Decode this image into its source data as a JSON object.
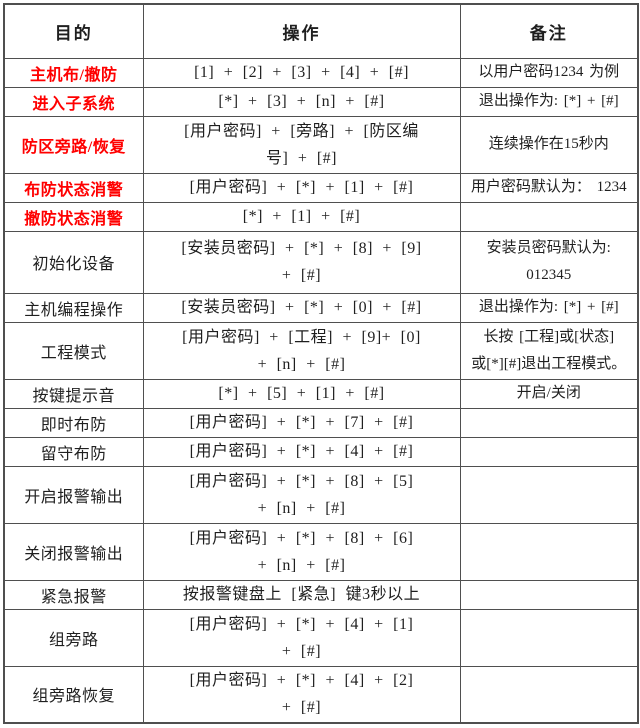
{
  "colors": {
    "highlight_red": "#ff0000",
    "text_black": "#1f1f1f",
    "border_gray": "#4f4f4f",
    "background": "#ffffff"
  },
  "table": {
    "header": {
      "purpose": "目的",
      "operation": "操作",
      "remark": "备注"
    },
    "rows": [
      {
        "purpose": "主机布/撤防",
        "highlighted": true,
        "op": [
          "[1] + [2] + [3] + [4] + [#]"
        ],
        "remark": [
          "以用户密码1234 为例"
        ]
      },
      {
        "purpose": "进入子系统",
        "highlighted": true,
        "op": [
          "[*] + [3] + [n] + [#]"
        ],
        "remark": [
          "退出操作为: [*] + [#]"
        ]
      },
      {
        "purpose": "防区旁路/恢复",
        "highlighted": true,
        "op": [
          "[用户密码] + [旁路] + [防区编",
          "号] + [#]"
        ],
        "remark": [
          "连续操作在15秒内"
        ]
      },
      {
        "purpose": "布防状态消警",
        "highlighted": true,
        "op": [
          "[用户密码] + [*] + [1] + [#]"
        ],
        "remark": [
          "用户密码默认为： 1234"
        ]
      },
      {
        "purpose": "撤防状态消警",
        "highlighted": true,
        "op": [
          "[*] + [1] + [#]"
        ],
        "remark": []
      },
      {
        "purpose": "初始化设备",
        "highlighted": false,
        "op": [
          "[安装员密码] + [*] + [8] + [9]",
          "+ [#]"
        ],
        "remark": [
          "安装员密码默认为:",
          "012345"
        ]
      },
      {
        "purpose": "主机编程操作",
        "highlighted": false,
        "op": [
          "[安装员密码] + [*] + [0] + [#]"
        ],
        "remark": [
          "退出操作为: [*] + [#]"
        ]
      },
      {
        "purpose": "工程模式",
        "highlighted": false,
        "op": [
          "[用户密码] + [工程] + [9]+ [0]",
          "+ [n] + [#]"
        ],
        "remark": [
          "长按 [工程]或[状态]",
          "或[*][#]退出工程模式。"
        ]
      },
      {
        "purpose": "按键提示音",
        "highlighted": false,
        "op": [
          "[*] + [5] + [1] + [#]"
        ],
        "remark": [
          "开启/关闭"
        ]
      },
      {
        "purpose": "即时布防",
        "highlighted": false,
        "op": [
          "[用户密码] + [*] + [7] + [#]"
        ],
        "remark": []
      },
      {
        "purpose": "留守布防",
        "highlighted": false,
        "op": [
          "[用户密码] + [*] + [4] + [#]"
        ],
        "remark": []
      },
      {
        "purpose": "开启报警输出",
        "highlighted": false,
        "op": [
          "[用户密码] + [*] + [8] + [5]",
          "+ [n] + [#]"
        ],
        "remark": []
      },
      {
        "purpose": "关闭报警输出",
        "highlighted": false,
        "op": [
          "[用户密码] + [*] + [8] + [6]",
          "+ [n] + [#]"
        ],
        "remark": []
      },
      {
        "purpose": "紧急报警",
        "highlighted": false,
        "op": [
          "按报警键盘上 [紧急] 键3秒以上"
        ],
        "remark": []
      },
      {
        "purpose": "组旁路",
        "highlighted": false,
        "op": [
          "[用户密码] + [*] + [4] + [1]",
          "+ [#]"
        ],
        "remark": []
      },
      {
        "purpose": "组旁路恢复",
        "highlighted": false,
        "op": [
          "[用户密码] + [*] + [4] + [2]",
          "+ [#]"
        ],
        "remark": []
      }
    ]
  }
}
